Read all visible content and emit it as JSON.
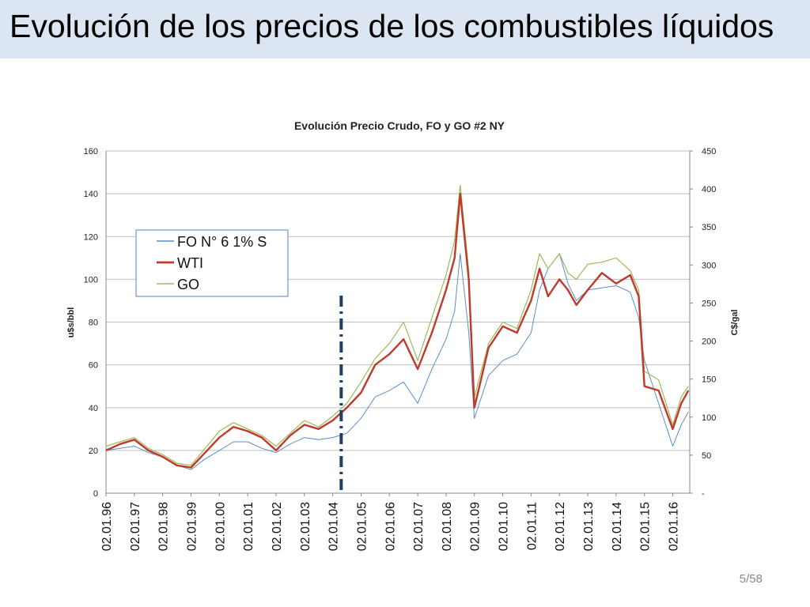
{
  "slide": {
    "title": "Evolución de los precios de los combustibles líquidos",
    "page": "5/58"
  },
  "colors": {
    "fo": "#5b8ec9",
    "wti": "#c0392b",
    "go": "#9bbb59",
    "marker": "#1f3d6b",
    "title_bar": "#dce6f2"
  },
  "chart_data": {
    "type": "line",
    "title": "Evolución Precio Crudo, FO y GO #2 NY",
    "ylabel": "u$s/bbl",
    "y2label": "C$/gal",
    "ylim": [
      0,
      160
    ],
    "y2lim": [
      0,
      450
    ],
    "yticks": [
      "0",
      "20",
      "40",
      "60",
      "80",
      "100",
      "120",
      "140",
      "160"
    ],
    "y2ticks": [
      "-",
      "50",
      "100",
      "150",
      "200",
      "250",
      "300",
      "350",
      "400",
      "450"
    ],
    "xlim": [
      1996.0,
      2016.6
    ],
    "xticks": [
      "02.01.96",
      "02.01.97",
      "02.01.98",
      "02.01.99",
      "02.01.00",
      "02.01.01",
      "02.01.02",
      "02.01.03",
      "02.01.04",
      "02.01.05",
      "02.01.06",
      "02.01.07",
      "02.01.08",
      "02.01.09",
      "02.01.10",
      "02.01.11",
      "02.01.12",
      "02.01.13",
      "02.01.14",
      "02.01.15",
      "02.01.16"
    ],
    "grid": true,
    "legend_position": "top-left",
    "marker_date": 2004.3,
    "series": [
      {
        "name": "FO N° 6 1% S",
        "key": "fo",
        "x": [
          1996.0,
          1996.5,
          1997.0,
          1997.5,
          1998.0,
          1998.5,
          1999.0,
          1999.5,
          2000.0,
          2000.5,
          2001.0,
          2001.5,
          2002.0,
          2002.5,
          2003.0,
          2003.5,
          2004.0,
          2004.5,
          2005.0,
          2005.5,
          2006.0,
          2006.5,
          2007.0,
          2007.5,
          2008.0,
          2008.3,
          2008.5,
          2008.8,
          2009.0,
          2009.5,
          2010.0,
          2010.5,
          2011.0,
          2011.3,
          2011.6,
          2012.0,
          2012.3,
          2012.6,
          2013.0,
          2013.5,
          2014.0,
          2014.5,
          2014.8,
          2015.0,
          2015.5,
          2016.0,
          2016.3,
          2016.55
        ],
        "values": [
          20,
          21,
          22,
          19,
          17,
          13,
          11,
          16,
          20,
          24,
          24,
          21,
          19,
          23,
          26,
          25,
          26,
          28,
          35,
          45,
          48,
          52,
          42,
          58,
          72,
          85,
          112,
          75,
          35,
          55,
          62,
          65,
          75,
          95,
          105,
          112,
          98,
          90,
          95,
          96,
          97,
          94,
          82,
          62,
          42,
          22,
          32,
          38
        ]
      },
      {
        "name": "WTI",
        "key": "wti",
        "x": [
          1996.0,
          1996.5,
          1997.0,
          1997.5,
          1998.0,
          1998.5,
          1999.0,
          1999.5,
          2000.0,
          2000.5,
          2001.0,
          2001.5,
          2002.0,
          2002.5,
          2003.0,
          2003.5,
          2004.0,
          2004.5,
          2005.0,
          2005.5,
          2006.0,
          2006.5,
          2007.0,
          2007.5,
          2008.0,
          2008.3,
          2008.5,
          2008.8,
          2009.0,
          2009.5,
          2010.0,
          2010.5,
          2011.0,
          2011.3,
          2011.6,
          2012.0,
          2012.3,
          2012.6,
          2013.0,
          2013.5,
          2014.0,
          2014.5,
          2014.8,
          2015.0,
          2015.5,
          2016.0,
          2016.3,
          2016.55
        ],
        "values": [
          20,
          23,
          25,
          20,
          17,
          13,
          12,
          19,
          26,
          31,
          29,
          26,
          20,
          27,
          32,
          30,
          34,
          40,
          47,
          60,
          65,
          72,
          58,
          75,
          95,
          110,
          140,
          100,
          40,
          68,
          78,
          75,
          90,
          105,
          92,
          100,
          95,
          88,
          95,
          103,
          98,
          102,
          92,
          50,
          48,
          30,
          42,
          48
        ]
      },
      {
        "name": "GO",
        "key": "go",
        "x": [
          1996.0,
          1996.5,
          1997.0,
          1997.5,
          1998.0,
          1998.5,
          1999.0,
          1999.5,
          2000.0,
          2000.5,
          2001.0,
          2001.5,
          2002.0,
          2002.5,
          2003.0,
          2003.5,
          2004.0,
          2004.5,
          2005.0,
          2005.5,
          2006.0,
          2006.5,
          2007.0,
          2007.5,
          2008.0,
          2008.3,
          2008.5,
          2008.8,
          2009.0,
          2009.5,
          2010.0,
          2010.5,
          2011.0,
          2011.3,
          2011.6,
          2012.0,
          2012.3,
          2012.6,
          2013.0,
          2013.5,
          2014.0,
          2014.5,
          2014.8,
          2015.0,
          2015.5,
          2016.0,
          2016.3,
          2016.55
        ],
        "values": [
          22,
          24,
          26,
          21,
          18,
          14,
          13,
          21,
          29,
          33,
          30,
          27,
          22,
          28,
          34,
          31,
          36,
          42,
          52,
          63,
          70,
          80,
          62,
          82,
          102,
          118,
          144,
          104,
          45,
          70,
          80,
          77,
          95,
          112,
          105,
          112,
          103,
          100,
          107,
          108,
          110,
          104,
          95,
          57,
          53,
          32,
          45,
          50
        ]
      }
    ]
  }
}
